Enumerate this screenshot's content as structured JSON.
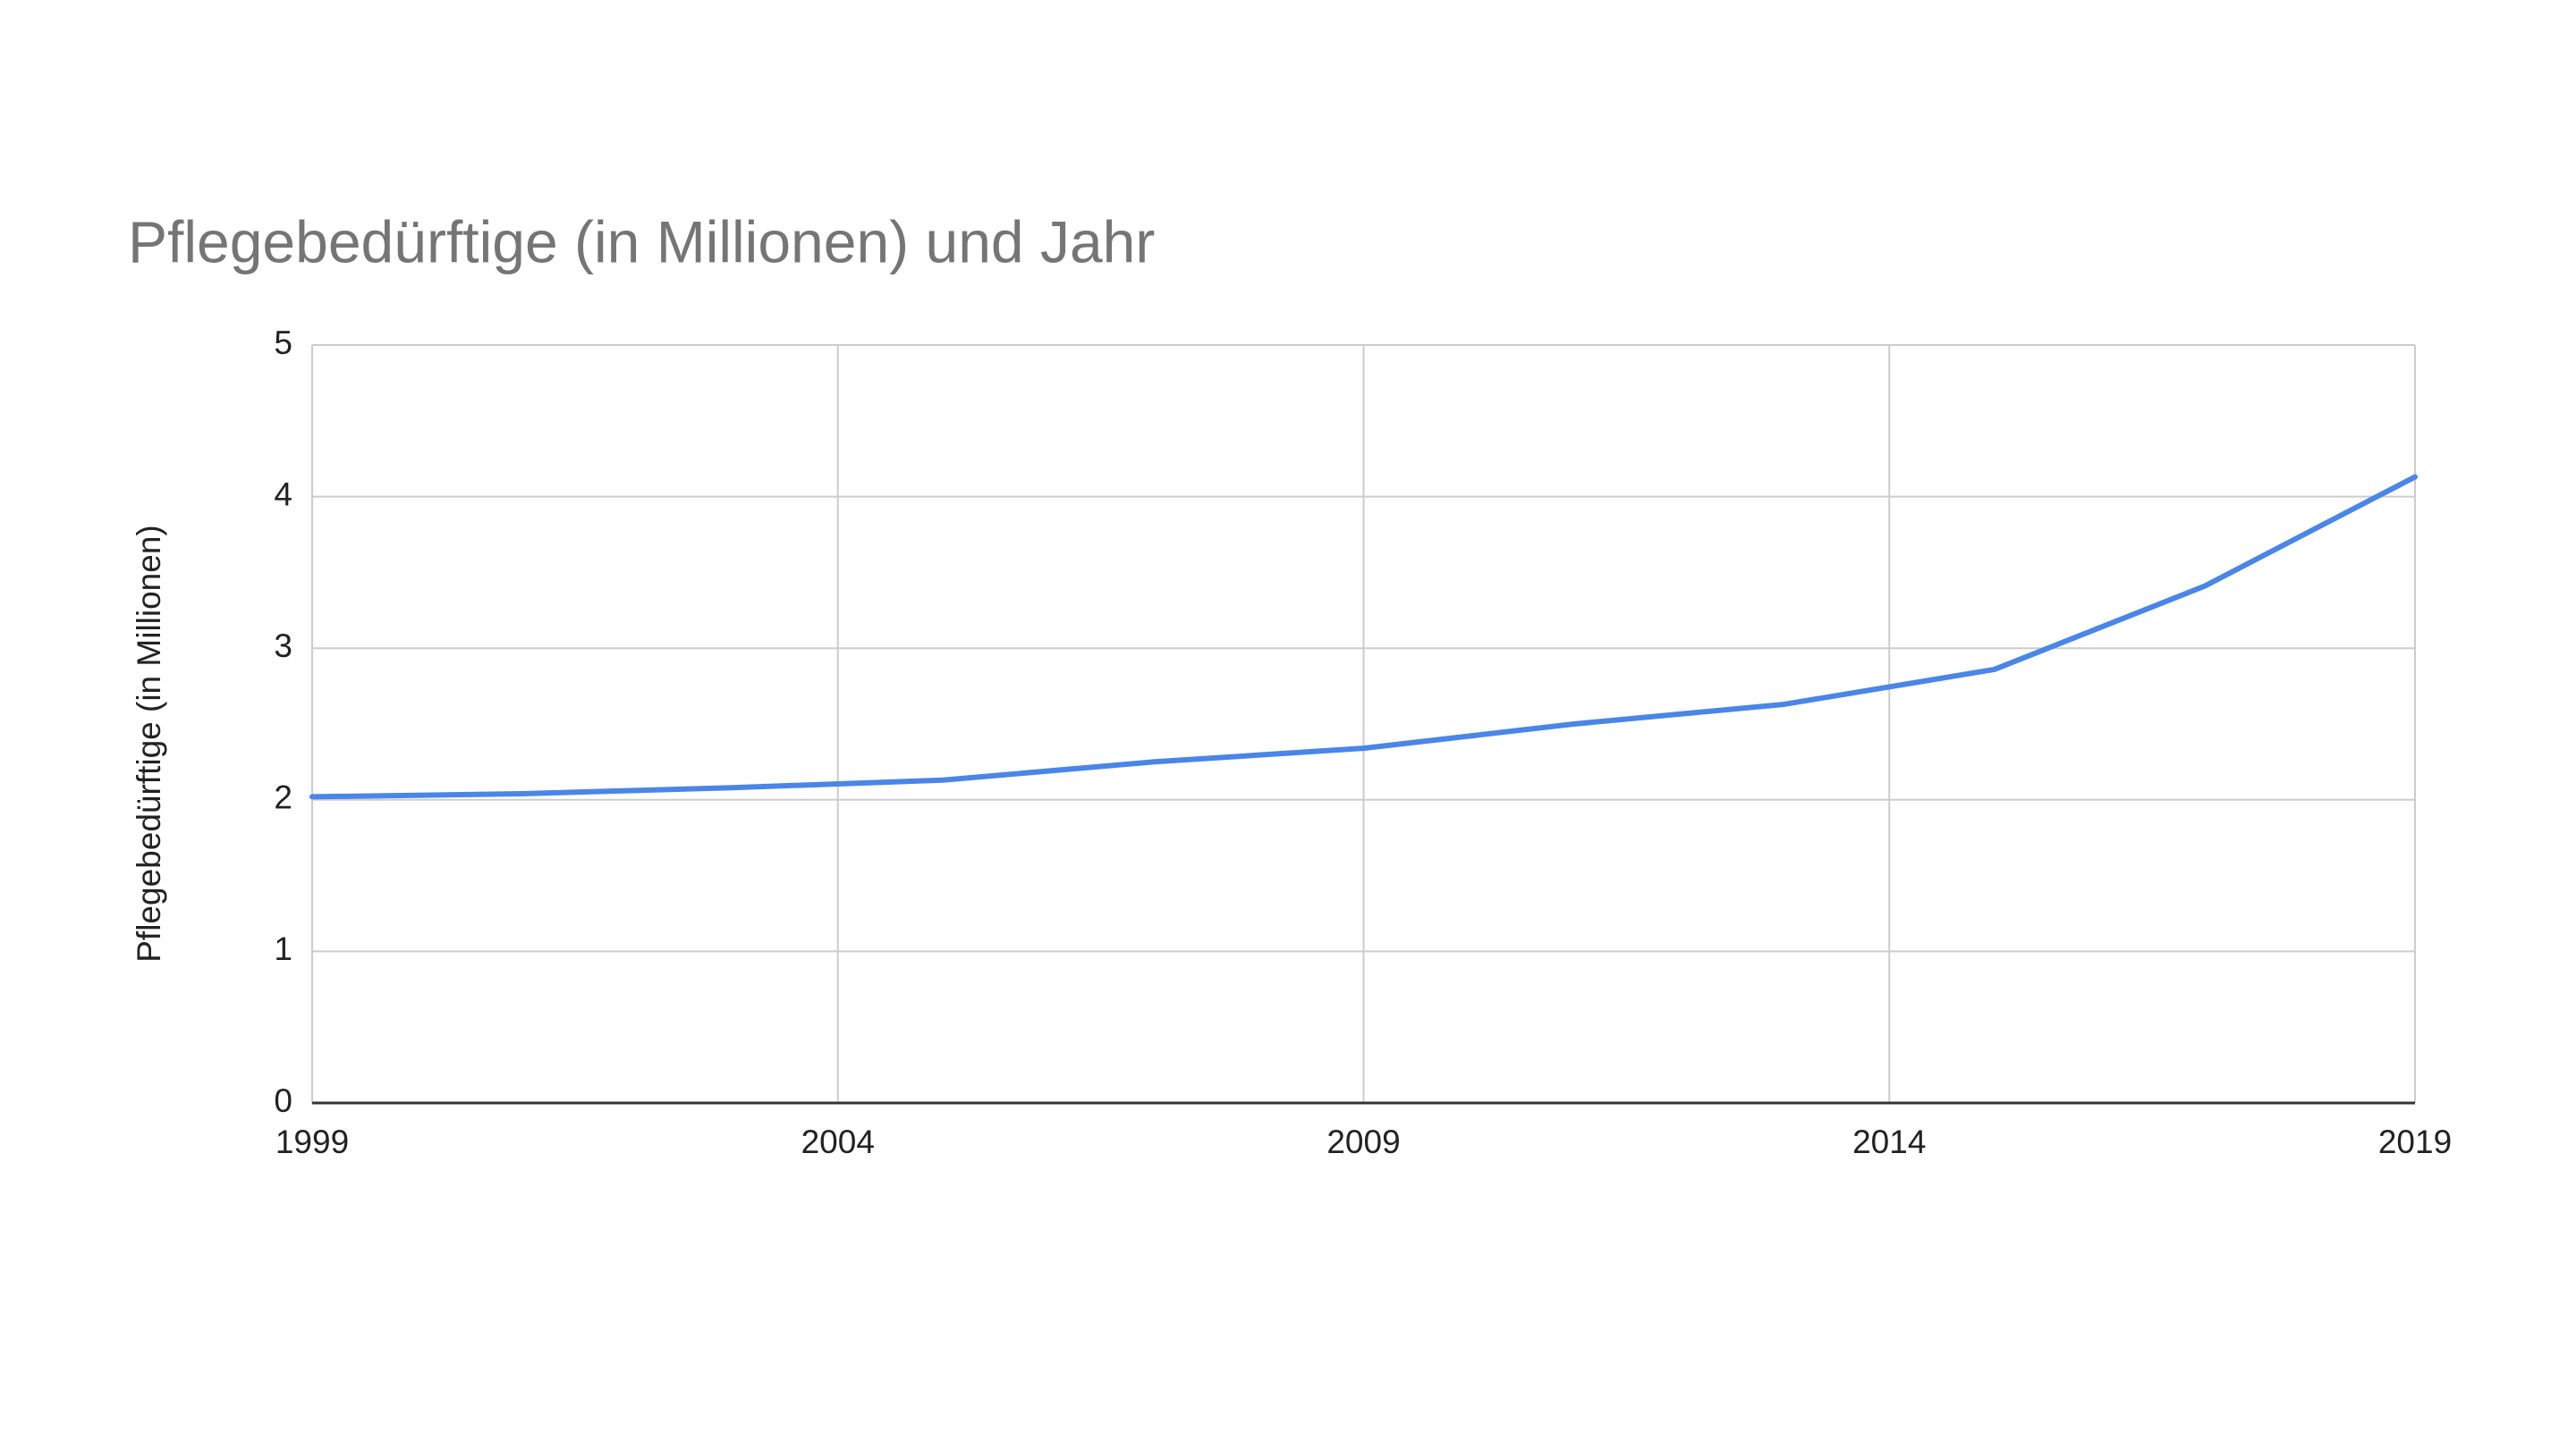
{
  "chart_data": {
    "type": "line",
    "title": "Pflegebedürftige (in Millionen) und Jahr",
    "y_label": "Pflegebedürftige (in Millionen)",
    "x": [
      1999,
      2001,
      2003,
      2005,
      2007,
      2009,
      2011,
      2013,
      2015,
      2017,
      2019
    ],
    "series": [
      {
        "name": "Pflegebedürftige (in Millionen)",
        "color": "#4a86e8",
        "values": [
          2.02,
          2.04,
          2.08,
          2.13,
          2.25,
          2.34,
          2.5,
          2.63,
          2.86,
          3.41,
          4.13
        ]
      }
    ],
    "xlim": [
      1999,
      2019
    ],
    "xticks": [
      1999,
      2004,
      2009,
      2014,
      2019
    ],
    "ylim": [
      0,
      5
    ],
    "yticks": [
      0,
      1,
      2,
      3,
      4,
      5
    ],
    "grid": true
  }
}
